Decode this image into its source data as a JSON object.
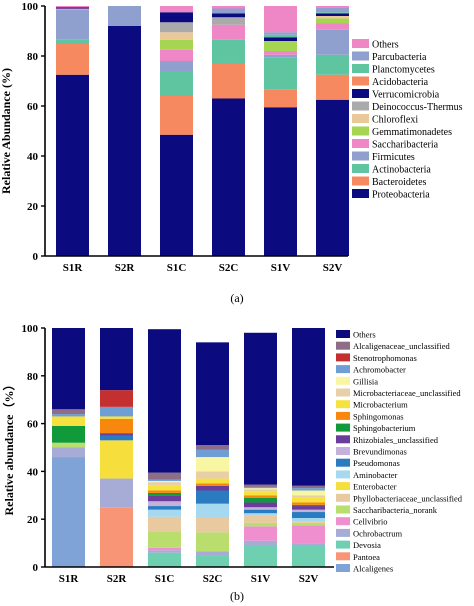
{
  "chart_data": [
    {
      "id": "a",
      "type": "bar",
      "stacked": true,
      "caption": "(a)",
      "ylabel": "Relative Abundance (%)",
      "ylim": [
        0,
        100
      ],
      "yticks": [
        0,
        20,
        40,
        60,
        80,
        100
      ],
      "grid": false,
      "legend_position": "right",
      "categories": [
        "S1R",
        "S2R",
        "S1C",
        "S2C",
        "S1V",
        "S2V"
      ],
      "series": [
        {
          "name": "Proteobacteria",
          "color": "#0b0b7f",
          "values": [
            72.5,
            92,
            48.5,
            63,
            59.5,
            62.5
          ]
        },
        {
          "name": "Bacteroidetes",
          "color": "#f6895f",
          "values": [
            12.5,
            0,
            15.5,
            14,
            7,
            10
          ]
        },
        {
          "name": "Actinobacteria",
          "color": "#5fc4a0",
          "values": [
            1.5,
            0,
            10,
            9.5,
            13,
            8
          ]
        },
        {
          "name": "Firmicutes",
          "color": "#8f9fce",
          "values": [
            12,
            0,
            4,
            0,
            1,
            10
          ]
        },
        {
          "name": "Saccharibacteria",
          "color": "#ef86c5",
          "values": [
            0.5,
            0,
            4.5,
            6,
            1.5,
            2.5
          ]
        },
        {
          "name": "Gemmatimonadetes",
          "color": "#a6d651",
          "values": [
            0,
            0,
            4,
            0,
            4,
            2
          ]
        },
        {
          "name": "Chloroflexi",
          "color": "#e9c899",
          "values": [
            0,
            0,
            3,
            0,
            0,
            1
          ]
        },
        {
          "name": "Deinococcus-Thermus",
          "color": "#aaaaaa",
          "values": [
            0,
            0,
            4,
            3,
            0,
            0
          ]
        },
        {
          "name": "Verrucomicrobia",
          "color": "#0b0b7f",
          "values": [
            0.5,
            0,
            4,
            1.5,
            1.5,
            1
          ]
        },
        {
          "name": "Acidobacteria",
          "color": "#f6895f",
          "values": [
            0,
            0,
            0,
            0,
            0,
            0
          ]
        },
        {
          "name": "Planctomycetes",
          "color": "#5fc4a0",
          "values": [
            0,
            0,
            0,
            0,
            1,
            0.5
          ]
        },
        {
          "name": "Parcubacteria",
          "color": "#8f9fce",
          "values": [
            0,
            8,
            0,
            2,
            1,
            2
          ]
        },
        {
          "name": "Others",
          "color": "#ef86c5",
          "values": [
            0.5,
            0,
            2.5,
            1,
            10.5,
            0.5
          ]
        }
      ]
    },
    {
      "id": "b",
      "type": "bar",
      "stacked": true,
      "caption": "(b)",
      "ylabel": "Relative abundance（%）",
      "ylim": [
        0,
        100
      ],
      "yticks": [
        0,
        20,
        40,
        60,
        80,
        100
      ],
      "grid": false,
      "legend_position": "right",
      "categories": [
        "S1R",
        "S2R",
        "S1C",
        "S2C",
        "S1V",
        "S2V"
      ],
      "series": [
        {
          "name": "Alcaligenes",
          "color": "#7fa3d6",
          "values": [
            46,
            0,
            0,
            0,
            0,
            0
          ]
        },
        {
          "name": "Pantoea",
          "color": "#f89577",
          "values": [
            0,
            25,
            0,
            0,
            0,
            0
          ]
        },
        {
          "name": "Devosia",
          "color": "#6fcfb1",
          "values": [
            0,
            0,
            6,
            5,
            9,
            9
          ]
        },
        {
          "name": "Ochrobactrum",
          "color": "#a6acd6",
          "values": [
            4,
            12,
            1,
            1.5,
            2,
            1
          ]
        },
        {
          "name": "Cellvibrio",
          "color": "#ef8fd0",
          "values": [
            0,
            0,
            1,
            0,
            6,
            7.5
          ]
        },
        {
          "name": "Saccharibacteria_norank",
          "color": "#b9de6d",
          "values": [
            2,
            0,
            7,
            8,
            1.5,
            1
          ]
        },
        {
          "name": "Phyllobacteriaceae_unclassified",
          "color": "#e9c9a0",
          "values": [
            0,
            0,
            6,
            6,
            3,
            0.5
          ]
        },
        {
          "name": "Enterobacter",
          "color": "#f6df3d",
          "values": [
            0,
            16,
            0,
            0,
            0,
            0
          ]
        },
        {
          "name": "Aminobacter",
          "color": "#a6d8ef",
          "values": [
            0,
            0,
            3,
            6,
            1,
            1.5
          ]
        },
        {
          "name": "Pseudomonas",
          "color": "#2a7bbf",
          "values": [
            0,
            2,
            1.5,
            5.5,
            1.5,
            2.5
          ]
        },
        {
          "name": "Brevundimonas",
          "color": "#c4b1dc",
          "values": [
            0,
            0,
            2,
            0,
            1,
            1
          ]
        },
        {
          "name": "Rhizobiales_unclassified",
          "color": "#6a3d9a",
          "values": [
            0,
            1,
            2.5,
            2,
            2,
            1.5
          ]
        },
        {
          "name": "Sphingobacterium",
          "color": "#119a3a",
          "values": [
            7,
            0,
            1,
            0,
            2,
            0.5
          ]
        },
        {
          "name": "Sphingomonas",
          "color": "#f8880d",
          "values": [
            0,
            6,
            1,
            1,
            1,
            1
          ]
        },
        {
          "name": "Microbacterium",
          "color": "#f5e23f",
          "values": [
            4,
            1,
            2,
            2,
            1.5,
            2
          ]
        },
        {
          "name": "Microbacteriaceae_unclassified",
          "color": "#e8cfa7",
          "values": [
            0,
            0,
            1.5,
            3,
            1,
            1
          ]
        },
        {
          "name": "Gillisia",
          "color": "#f8f5a3",
          "values": [
            0,
            0,
            0.5,
            6,
            0.5,
            2
          ]
        },
        {
          "name": "Achromobacter",
          "color": "#6f9ed4",
          "values": [
            1,
            4,
            0.5,
            3,
            0.5,
            1
          ]
        },
        {
          "name": "Stenotrophomonas",
          "color": "#c43030",
          "values": [
            0,
            7,
            0,
            0,
            0,
            0
          ]
        },
        {
          "name": "Alcaligenaceae_unclassified",
          "color": "#8e6e86",
          "values": [
            2,
            0,
            3,
            2,
            1,
            1
          ]
        },
        {
          "name": "Others",
          "color": "#0b0b7f",
          "values": [
            34,
            26,
            60,
            43,
            63.5,
            66
          ]
        }
      ]
    }
  ]
}
